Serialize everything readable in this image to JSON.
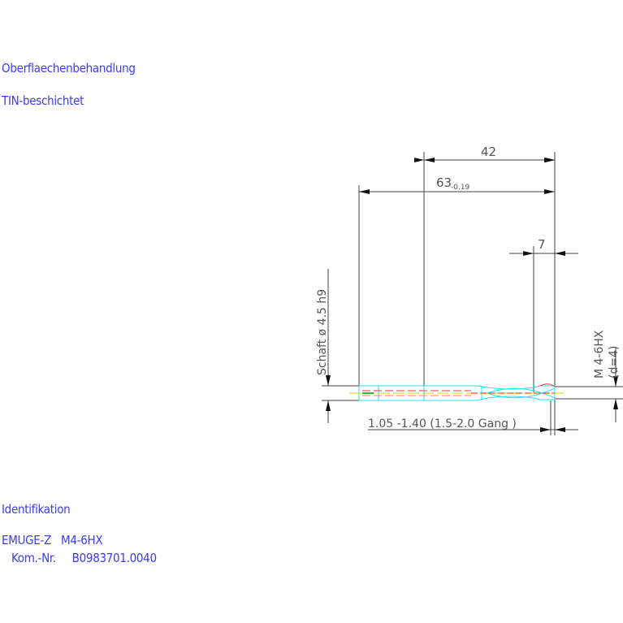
{
  "notes": {
    "surface_heading": "Oberflaechenbehandlung",
    "surface_value": "TIN-beschichtet",
    "ident_heading": "Identifikation",
    "ident_line1": "EMUGE-Z   M4-6HX",
    "ident_line2": "   Kom.-Nr.     B0983701.0040"
  },
  "drawing": {
    "dim_42": "42",
    "dim_63": "63",
    "dim_63_tol": "-0.19",
    "dim_7": "7",
    "shank_label": "Schaft  ø  4.5   h9",
    "thread_label": "M  4-6HX",
    "thread_d": "(d=4)",
    "chamfer_label": "1.05  -1.40 (1.5-2.0  Gang   )"
  },
  "colors": {
    "text": "#3b3bff",
    "dimension": "#444444",
    "outline": "#22e0f0",
    "hidden": "#ff3030",
    "center": "#f0e040"
  }
}
